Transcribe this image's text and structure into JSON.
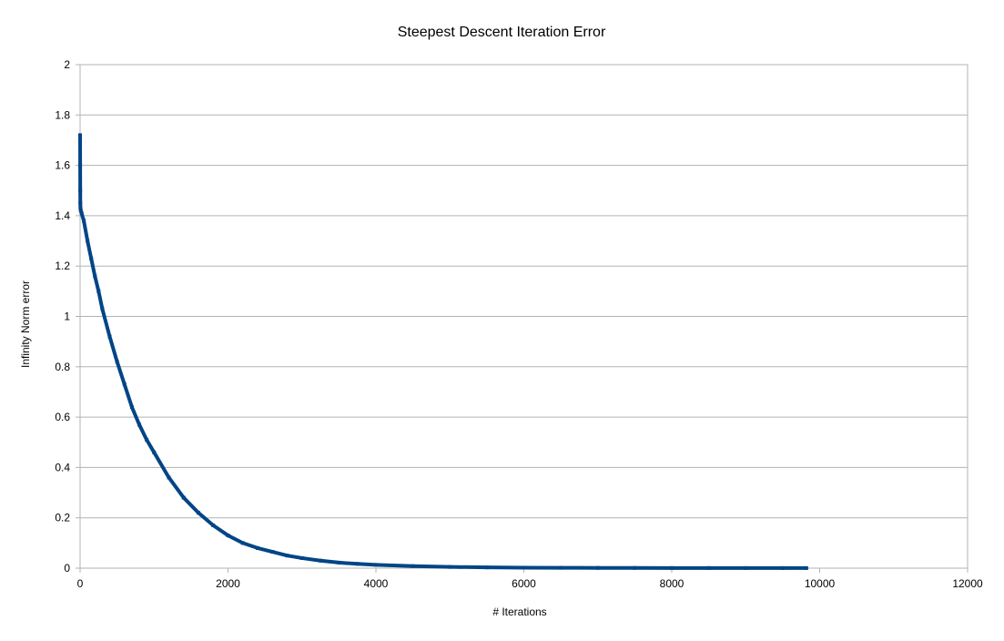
{
  "chart_data": {
    "type": "scatter",
    "title": "Steepest Descent Iteration Error",
    "xlabel": "# Iterations",
    "ylabel": "Infinity Norm error",
    "xlim": [
      0,
      12000
    ],
    "ylim": [
      0,
      2
    ],
    "x_ticks": [
      0,
      2000,
      4000,
      6000,
      8000,
      10000,
      12000
    ],
    "y_ticks": [
      0,
      0.2,
      0.4,
      0.6,
      0.8,
      1,
      1.2,
      1.4,
      1.6,
      1.8,
      2
    ],
    "x_tick_labels": [
      "0",
      "2000",
      "4000",
      "6000",
      "8000",
      "10000",
      "12000"
    ],
    "y_tick_labels": [
      "0",
      "0.2",
      "0.4",
      "0.6",
      "0.8",
      "1",
      "1.2",
      "1.4",
      "1.6",
      "1.8",
      "2"
    ],
    "grid": true,
    "legend": "none",
    "series_color": "#004586",
    "series": [
      {
        "x": [
          0,
          1,
          2,
          3,
          5,
          10,
          20,
          50,
          100,
          150,
          200,
          250,
          300,
          400,
          500,
          600,
          700,
          800,
          900,
          1000,
          1200,
          1400,
          1600,
          1800,
          2000,
          2200,
          2400,
          2600,
          2800,
          3000,
          3250,
          3500,
          3750,
          4000,
          4500,
          5000,
          5500,
          6000,
          6500,
          7000,
          7500,
          8000,
          8500,
          9000,
          9500,
          9820
        ],
        "y": [
          1.72,
          1.6,
          1.5,
          1.45,
          1.43,
          1.42,
          1.41,
          1.38,
          1.3,
          1.23,
          1.16,
          1.1,
          1.03,
          0.92,
          0.82,
          0.73,
          0.64,
          0.57,
          0.51,
          0.46,
          0.36,
          0.28,
          0.22,
          0.17,
          0.13,
          0.1,
          0.08,
          0.065,
          0.05,
          0.04,
          0.03,
          0.022,
          0.017,
          0.013,
          0.008,
          0.005,
          0.003,
          0.002,
          0.0015,
          0.001,
          0.0008,
          0.0006,
          0.0005,
          0.0004,
          0.0003,
          0.0003
        ]
      }
    ]
  }
}
